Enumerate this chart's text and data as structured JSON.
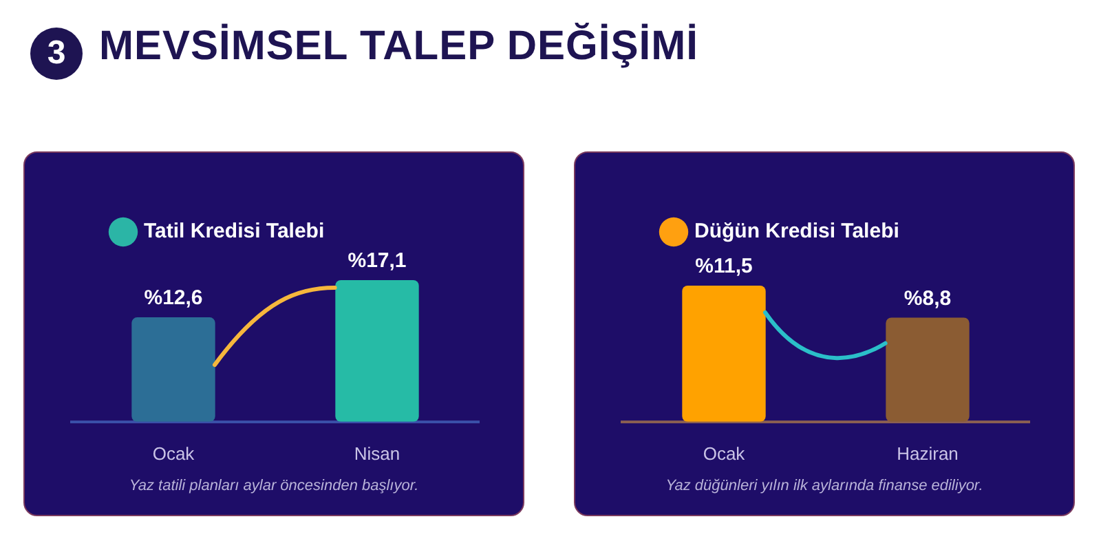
{
  "chart_data": [
    {
      "type": "bar",
      "title": "MEVSİMSEL TALEP DEĞİŞİMİ",
      "annotations": [
        "3",
        "Yaz tatili planları aylar öncesinden başlıyor."
      ],
      "categories": [
        "Ocak",
        "Nisan"
      ],
      "legend": "top left",
      "series": [
        {
          "name": "Tatil Kredisi Talebi",
          "color": "#2bb5a6",
          "colors": [
            "#2c6e96",
            "#26bba6"
          ],
          "values": [
            12.6,
            17.1
          ],
          "value_labels": [
            "%12,6",
            "%17,1"
          ]
        }
      ]
    },
    {
      "type": "bar",
      "annotations": [
        "Yaz düğünleri yılın ilk aylarında finanse ediliyor."
      ],
      "categories": [
        "Ocak",
        "Haziran"
      ],
      "legend": "top left",
      "series": [
        {
          "name": "Düğün Kredisi Talebi",
          "color": "#ffa010",
          "colors": [
            "#ffa200",
            "#8b5c33"
          ],
          "values": [
            11.5,
            8.8
          ],
          "value_labels": [
            "%11,5",
            "%8,8"
          ]
        }
      ]
    }
  ]
}
